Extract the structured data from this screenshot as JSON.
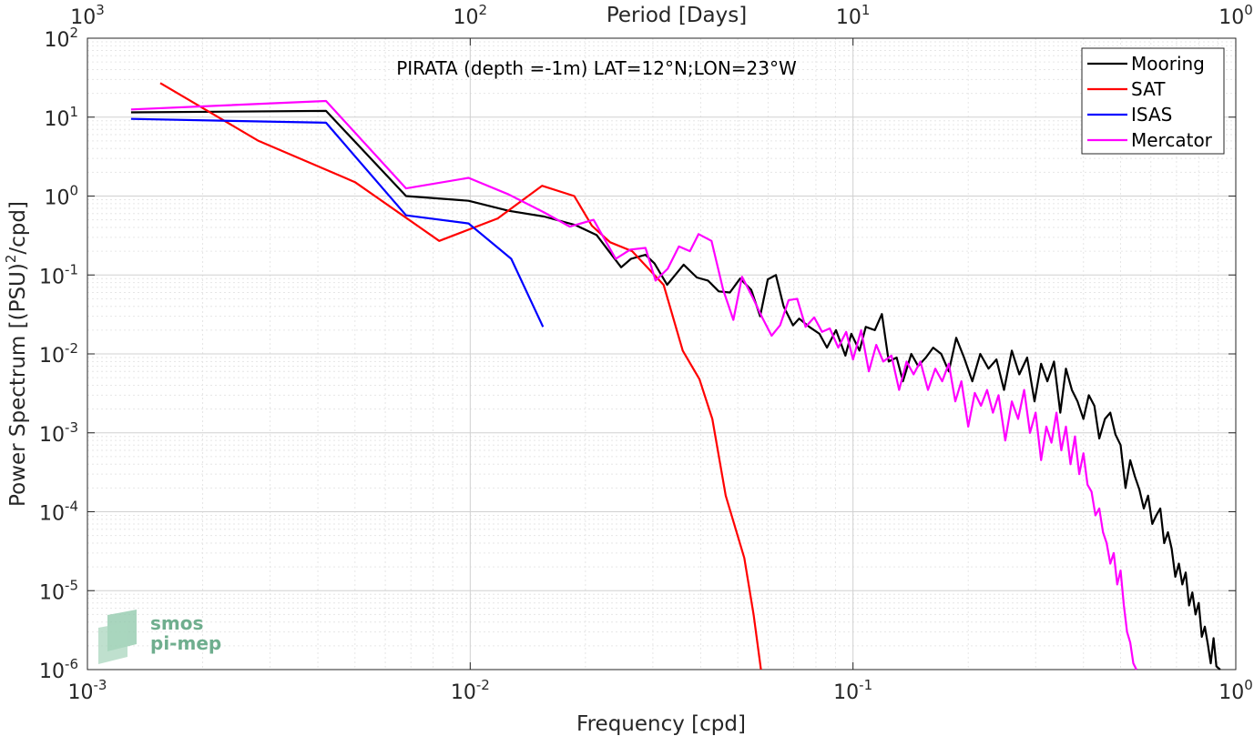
{
  "chart_data": {
    "type": "line",
    "annotation": "PIRATA (depth =-1m) LAT=12°N;LON=23°W",
    "xlabel": "Frequency [cpd]",
    "ylabel": "Power Spectrum [(PSU)",
    "ylabel_sup": "2",
    "ylabel_suffix": "/cpd]",
    "top_xlabel": "Period [Days]",
    "xscale": "log",
    "yscale": "log",
    "xlim": [
      0.001,
      1
    ],
    "ylim": [
      1e-06,
      100
    ],
    "grid": true,
    "legend_position": "top-right",
    "x_ticks": [
      {
        "base": "10",
        "exp": "-3"
      },
      {
        "base": "10",
        "exp": "-2"
      },
      {
        "base": "10",
        "exp": "-1"
      },
      {
        "base": "10",
        "exp": "0"
      }
    ],
    "top_ticks": [
      {
        "base": "10",
        "exp": "3"
      },
      {
        "base": "10",
        "exp": "2"
      },
      {
        "base": "10",
        "exp": "1"
      },
      {
        "base": "10",
        "exp": "0"
      }
    ],
    "y_ticks": [
      {
        "base": "10",
        "exp": "-6"
      },
      {
        "base": "10",
        "exp": "-5"
      },
      {
        "base": "10",
        "exp": "-4"
      },
      {
        "base": "10",
        "exp": "-3"
      },
      {
        "base": "10",
        "exp": "-2"
      },
      {
        "base": "10",
        "exp": "-1"
      },
      {
        "base": "10",
        "exp": "0"
      },
      {
        "base": "10",
        "exp": "1"
      },
      {
        "base": "10",
        "exp": "2"
      }
    ],
    "series": [
      {
        "name": "Mooring",
        "color": "#000000",
        "points": [
          [
            0.0013,
            11.5
          ],
          [
            0.0042,
            12
          ],
          [
            0.0068,
            1.0
          ],
          [
            0.0099,
            0.87
          ],
          [
            0.0126,
            0.65
          ],
          [
            0.0156,
            0.55
          ],
          [
            0.0188,
            0.43
          ],
          [
            0.0214,
            0.32
          ],
          [
            0.0248,
            0.125
          ],
          [
            0.0263,
            0.16
          ],
          [
            0.0287,
            0.18
          ],
          [
            0.0303,
            0.14
          ],
          [
            0.0327,
            0.075
          ],
          [
            0.0361,
            0.135
          ],
          [
            0.0391,
            0.093
          ],
          [
            0.0418,
            0.085
          ],
          [
            0.0446,
            0.062
          ],
          [
            0.0477,
            0.06
          ],
          [
            0.0507,
            0.09
          ],
          [
            0.0542,
            0.065
          ],
          [
            0.0572,
            0.03
          ],
          [
            0.0599,
            0.088
          ],
          [
            0.0629,
            0.1
          ],
          [
            0.0659,
            0.04
          ],
          [
            0.0697,
            0.023
          ],
          [
            0.0723,
            0.028
          ],
          [
            0.0769,
            0.022
          ],
          [
            0.0817,
            0.018
          ],
          [
            0.0855,
            0.012
          ],
          [
            0.0903,
            0.02
          ],
          [
            0.0955,
            0.0095
          ],
          [
            0.099,
            0.018
          ],
          [
            0.104,
            0.011
          ],
          [
            0.108,
            0.022
          ],
          [
            0.114,
            0.02
          ],
          [
            0.119,
            0.032
          ],
          [
            0.124,
            0.008
          ],
          [
            0.13,
            0.009
          ],
          [
            0.135,
            0.0045
          ],
          [
            0.142,
            0.01
          ],
          [
            0.148,
            0.007
          ],
          [
            0.155,
            0.009
          ],
          [
            0.162,
            0.012
          ],
          [
            0.17,
            0.01
          ],
          [
            0.178,
            0.006
          ],
          [
            0.186,
            0.016
          ],
          [
            0.195,
            0.009
          ],
          [
            0.205,
            0.0045
          ],
          [
            0.215,
            0.01
          ],
          [
            0.226,
            0.0065
          ],
          [
            0.237,
            0.0085
          ],
          [
            0.248,
            0.0035
          ],
          [
            0.26,
            0.011
          ],
          [
            0.272,
            0.0055
          ],
          [
            0.285,
            0.009
          ],
          [
            0.298,
            0.0025
          ],
          [
            0.31,
            0.0075
          ],
          [
            0.322,
            0.0045
          ],
          [
            0.335,
            0.008
          ],
          [
            0.348,
            0.0018
          ],
          [
            0.36,
            0.0065
          ],
          [
            0.373,
            0.0035
          ],
          [
            0.386,
            0.0025
          ],
          [
            0.4,
            0.0015
          ],
          [
            0.413,
            0.003
          ],
          [
            0.427,
            0.0022
          ],
          [
            0.44,
            0.00085
          ],
          [
            0.455,
            0.0015
          ],
          [
            0.47,
            0.0018
          ],
          [
            0.485,
            0.00095
          ],
          [
            0.5,
            0.0007
          ],
          [
            0.515,
            0.0002
          ],
          [
            0.53,
            0.00045
          ],
          [
            0.545,
            0.00028
          ],
          [
            0.56,
            0.00019
          ],
          [
            0.575,
            0.00011
          ],
          [
            0.59,
            0.00016
          ],
          [
            0.605,
            7e-05
          ],
          [
            0.62,
            9e-05
          ],
          [
            0.635,
            0.00011
          ],
          [
            0.65,
            4e-05
          ],
          [
            0.665,
            5.5e-05
          ],
          [
            0.68,
            3.4e-05
          ],
          [
            0.695,
            1.5e-05
          ],
          [
            0.71,
            2.2e-05
          ],
          [
            0.725,
            1.2e-05
          ],
          [
            0.74,
            1.7e-05
          ],
          [
            0.755,
            6.5e-06
          ],
          [
            0.77,
            9.5e-06
          ],
          [
            0.785,
            5e-06
          ],
          [
            0.8,
            7e-06
          ],
          [
            0.815,
            2.6e-06
          ],
          [
            0.83,
            3.5e-06
          ],
          [
            0.845,
            2.1e-06
          ],
          [
            0.86,
            1.2e-06
          ],
          [
            0.875,
            2.5e-06
          ],
          [
            0.89,
            1.1e-06
          ],
          [
            0.91,
            1e-06
          ]
        ]
      },
      {
        "name": "SAT",
        "color": "#ff0000",
        "points": [
          [
            0.00155,
            27
          ],
          [
            0.0028,
            5
          ],
          [
            0.005,
            1.5
          ],
          [
            0.0083,
            0.27
          ],
          [
            0.0118,
            0.52
          ],
          [
            0.0154,
            1.35
          ],
          [
            0.0187,
            1.0
          ],
          [
            0.0208,
            0.42
          ],
          [
            0.0232,
            0.26
          ],
          [
            0.0265,
            0.2
          ],
          [
            0.032,
            0.075
          ],
          [
            0.0359,
            0.011
          ],
          [
            0.0397,
            0.0048
          ],
          [
            0.0429,
            0.0015
          ],
          [
            0.0465,
            0.00016
          ],
          [
            0.052,
            2.6e-05
          ],
          [
            0.055,
            5e-06
          ],
          [
            0.0575,
            1e-06
          ]
        ]
      },
      {
        "name": "ISAS",
        "color": "#0000ff",
        "points": [
          [
            0.0013,
            9.5
          ],
          [
            0.0042,
            8.5
          ],
          [
            0.0068,
            0.57
          ],
          [
            0.0099,
            0.45
          ],
          [
            0.0128,
            0.16
          ],
          [
            0.0155,
            0.022
          ]
        ]
      },
      {
        "name": "Mercator",
        "color": "#ff00ff",
        "points": [
          [
            0.0013,
            12.5
          ],
          [
            0.0042,
            16
          ],
          [
            0.0068,
            1.25
          ],
          [
            0.0099,
            1.7
          ],
          [
            0.0126,
            1.05
          ],
          [
            0.0156,
            0.62
          ],
          [
            0.0182,
            0.41
          ],
          [
            0.021,
            0.5
          ],
          [
            0.024,
            0.16
          ],
          [
            0.0262,
            0.21
          ],
          [
            0.0287,
            0.22
          ],
          [
            0.0305,
            0.085
          ],
          [
            0.0328,
            0.12
          ],
          [
            0.0351,
            0.23
          ],
          [
            0.0375,
            0.2
          ],
          [
            0.0395,
            0.33
          ],
          [
            0.0427,
            0.27
          ],
          [
            0.0458,
            0.065
          ],
          [
            0.0487,
            0.027
          ],
          [
            0.0513,
            0.095
          ],
          [
            0.0547,
            0.052
          ],
          [
            0.0579,
            0.029
          ],
          [
            0.0613,
            0.017
          ],
          [
            0.0645,
            0.023
          ],
          [
            0.0679,
            0.048
          ],
          [
            0.0715,
            0.05
          ],
          [
            0.0752,
            0.022
          ],
          [
            0.0792,
            0.029
          ],
          [
            0.083,
            0.019
          ],
          [
            0.087,
            0.021
          ],
          [
            0.0915,
            0.012
          ],
          [
            0.096,
            0.019
          ],
          [
            0.1,
            0.0085
          ],
          [
            0.105,
            0.02
          ],
          [
            0.11,
            0.006
          ],
          [
            0.115,
            0.013
          ],
          [
            0.12,
            0.008
          ],
          [
            0.126,
            0.0095
          ],
          [
            0.132,
            0.0035
          ],
          [
            0.138,
            0.008
          ],
          [
            0.144,
            0.0055
          ],
          [
            0.15,
            0.008
          ],
          [
            0.157,
            0.0035
          ],
          [
            0.164,
            0.0065
          ],
          [
            0.171,
            0.0045
          ],
          [
            0.178,
            0.0075
          ],
          [
            0.185,
            0.0025
          ],
          [
            0.192,
            0.0045
          ],
          [
            0.2,
            0.0012
          ],
          [
            0.208,
            0.0032
          ],
          [
            0.216,
            0.0022
          ],
          [
            0.224,
            0.0035
          ],
          [
            0.232,
            0.0018
          ],
          [
            0.24,
            0.003
          ],
          [
            0.25,
            0.0008
          ],
          [
            0.26,
            0.0025
          ],
          [
            0.27,
            0.0015
          ],
          [
            0.28,
            0.0035
          ],
          [
            0.29,
            0.001
          ],
          [
            0.3,
            0.0018
          ],
          [
            0.31,
            0.00045
          ],
          [
            0.32,
            0.0012
          ],
          [
            0.33,
            0.00075
          ],
          [
            0.34,
            0.0018
          ],
          [
            0.35,
            0.0006
          ],
          [
            0.36,
            0.0012
          ],
          [
            0.37,
            0.0004
          ],
          [
            0.38,
            0.0009
          ],
          [
            0.39,
            0.0003
          ],
          [
            0.4,
            0.00055
          ],
          [
            0.41,
            0.00022
          ],
          [
            0.42,
            0.00018
          ],
          [
            0.43,
            9e-05
          ],
          [
            0.44,
            0.00011
          ],
          [
            0.45,
            5.5e-05
          ],
          [
            0.46,
            4e-05
          ],
          [
            0.47,
            2.2e-05
          ],
          [
            0.48,
            3e-05
          ],
          [
            0.49,
            1.2e-05
          ],
          [
            0.5,
            1.8e-05
          ],
          [
            0.51,
            6.5e-06
          ],
          [
            0.52,
            3e-06
          ],
          [
            0.53,
            2.2e-06
          ],
          [
            0.54,
            1.2e-06
          ],
          [
            0.55,
            1e-06
          ]
        ]
      }
    ]
  },
  "logo": {
    "line1": "smos",
    "line2": "pi-mep"
  }
}
